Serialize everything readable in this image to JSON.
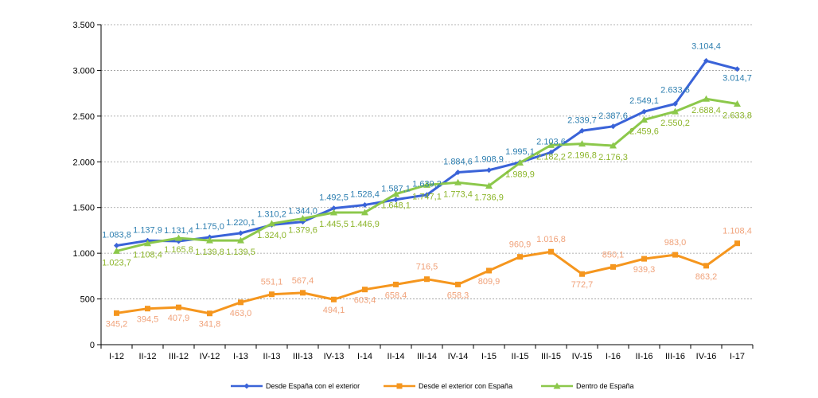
{
  "chart_data": {
    "type": "line",
    "categories": [
      "I-12",
      "II-12",
      "III-12",
      "IV-12",
      "I-13",
      "II-13",
      "III-13",
      "IV-13",
      "I-14",
      "II-14",
      "III-14",
      "IV-14",
      "I-15",
      "II-15",
      "III-15",
      "IV-15",
      "I-16",
      "II-16",
      "III-16",
      "IV-16",
      "I-17"
    ],
    "ylim": [
      0,
      3500
    ],
    "yticks": [
      0,
      500,
      1000,
      1500,
      2000,
      2500,
      3000,
      3500
    ],
    "ytick_labels": [
      "0",
      "500",
      "1.000",
      "1.500",
      "2.000",
      "2.500",
      "3.000",
      "3.500"
    ],
    "grid": "horizontal-dashed",
    "legend_position": "bottom",
    "series": [
      {
        "name": "Desde España con el exterior",
        "color": "#3a63d8",
        "label_color": "#2e7fb0",
        "marker": "diamond",
        "values": [
          1083.8,
          1137.9,
          1131.4,
          1175.0,
          1220.1,
          1310.2,
          1344.0,
          1492.5,
          1528.4,
          1587.1,
          1639.2,
          1884.6,
          1908.9,
          1995.1,
          2103.6,
          2339.7,
          2387.6,
          2549.1,
          2633.6,
          3104.4,
          3014.7
        ],
        "labels": [
          "1.083,8",
          "1.137,9",
          "1.131,4",
          "1.175,0",
          "1.220,1",
          "1.310,2",
          "1.344,0",
          "1.492,5",
          "1.528,4",
          "1.587,1",
          "1.639,2",
          "1.884,6",
          "1.908,9",
          "1.995,1",
          "2.103,6",
          "2.339,7",
          "2.387,6",
          "2.549,1",
          "2.633,6",
          "3.104,4",
          "3.014,7"
        ]
      },
      {
        "name": "Desde el exterior con España",
        "color": "#f5961e",
        "label_color": "#f0a27a",
        "marker": "square",
        "values": [
          345.2,
          394.5,
          407.9,
          341.8,
          463.0,
          551.1,
          567.4,
          494.1,
          603.4,
          658.4,
          716.5,
          658.3,
          809.9,
          960.9,
          1016.8,
          772.7,
          850.1,
          939.3,
          983.0,
          863.2,
          1108.4
        ],
        "labels": [
          "345,2",
          "394,5",
          "407,9",
          "341,8",
          "463,0",
          "551,1",
          "567,4",
          "494,1",
          "603,4",
          "658,4",
          "716,5",
          "658,3",
          "809,9",
          "960,9",
          "1.016,8",
          "772,7",
          "850,1",
          "939,3",
          "983,0",
          "863,2",
          "1.108,4"
        ]
      },
      {
        "name": "Dentro de España",
        "color": "#8cc84b",
        "label_color": "#8cb52a",
        "marker": "triangle",
        "values": [
          1023.7,
          1108.4,
          1165.8,
          1139.8,
          1139.5,
          1324.0,
          1379.6,
          1445.5,
          1446.9,
          1648.1,
          1747.1,
          1773.4,
          1736.9,
          1989.9,
          2182.2,
          2196.8,
          2176.3,
          2459.6,
          2550.2,
          2688.4,
          2633.8
        ],
        "labels": [
          "1.023,7",
          "1.108,4",
          "1.165,8",
          "1.139,8",
          "1.139,5",
          "1.324,0",
          "1.379,6",
          "1.445,5",
          "1.446,9",
          "1.648,1",
          "1.747,1",
          "1.773,4",
          "1.736,9",
          "1.989,9",
          "2.182,2",
          "2.196,8",
          "2.176,3",
          "2.459,6",
          "2.550,2",
          "2.688,4",
          "2.633,8"
        ]
      }
    ]
  }
}
